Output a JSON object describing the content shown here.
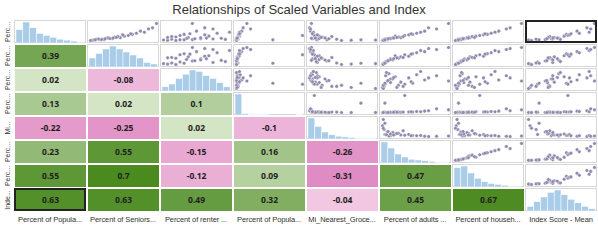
{
  "chart_data": {
    "type": "scatter_matrix",
    "title": "Relationships of Scaled Variables and Index",
    "variables": [
      "Percent of Popula...",
      "Percent of Seniors...",
      "Percent of renter ...",
      "Percent of Popula...",
      "Mi_Nearest_Groce...",
      "Percent of adults ...",
      "Percent of househ...",
      "Index Score - Mean"
    ],
    "row_labels": [
      "Perc...",
      "Perc...",
      "Perc...",
      "Perc...",
      "Mi...",
      "Perc...",
      "Perc...",
      "Inde..."
    ],
    "correlations": [
      [],
      [
        0.39
      ],
      [
        0.02,
        -0.08
      ],
      [
        0.13,
        0.02,
        0.1
      ],
      [
        -0.22,
        -0.25,
        0.02,
        -0.1
      ],
      [
        0.23,
        0.55,
        -0.15,
        0.16,
        -0.26
      ],
      [
        0.55,
        0.7,
        -0.12,
        0.09,
        -0.31,
        0.47
      ],
      [
        0.63,
        0.63,
        0.49,
        0.32,
        -0.04,
        0.45,
        0.67
      ]
    ],
    "bins": [
      0,
      0.1,
      0.2,
      0.3,
      0.4,
      0.5,
      0.6,
      0.7,
      0.8,
      0.9,
      1
    ],
    "histogram_counts": [
      [
        14,
        22,
        16,
        10,
        8,
        6,
        4,
        3,
        2,
        1
      ],
      [
        6,
        9,
        12,
        14,
        12,
        10,
        8,
        6,
        3,
        2
      ],
      [
        3,
        5,
        9,
        12,
        15,
        14,
        11,
        9,
        6,
        3
      ],
      [
        60,
        4,
        2,
        1,
        1,
        0,
        0,
        0,
        0,
        1
      ],
      [
        30,
        18,
        10,
        6,
        4,
        3,
        2,
        1,
        1,
        1
      ],
      [
        28,
        20,
        12,
        8,
        5,
        4,
        3,
        2,
        1,
        1
      ],
      [
        22,
        24,
        16,
        10,
        6,
        4,
        3,
        2,
        1,
        1
      ],
      [
        4,
        8,
        12,
        16,
        18,
        14,
        10,
        7,
        4,
        2
      ]
    ],
    "observations": [
      [
        0.05,
        0.2,
        0.3,
        0.02,
        0.1,
        0.05,
        0.08,
        0.2
      ],
      [
        0.1,
        0.35,
        0.55,
        0.01,
        0.05,
        0.12,
        0.15,
        0.38
      ],
      [
        0.08,
        0.15,
        0.2,
        0.03,
        0.3,
        0.04,
        0.06,
        0.18
      ],
      [
        0.15,
        0.45,
        0.4,
        0.02,
        0.08,
        0.25,
        0.22,
        0.42
      ],
      [
        0.22,
        0.5,
        0.65,
        0.05,
        0.12,
        0.18,
        0.3,
        0.55
      ],
      [
        0.03,
        0.1,
        0.15,
        0.01,
        0.45,
        0.02,
        0.04,
        0.1
      ],
      [
        0.3,
        0.6,
        0.35,
        0.04,
        0.06,
        0.4,
        0.45,
        0.58
      ],
      [
        0.12,
        0.28,
        0.8,
        0.02,
        0.04,
        0.1,
        0.12,
        0.48
      ],
      [
        0.45,
        0.7,
        0.5,
        0.08,
        0.03,
        0.55,
        0.6,
        0.72
      ],
      [
        0.06,
        0.25,
        0.45,
        0.01,
        0.2,
        0.08,
        0.1,
        0.3
      ],
      [
        0.18,
        0.38,
        0.25,
        0.03,
        0.15,
        0.22,
        0.2,
        0.35
      ],
      [
        0.6,
        0.85,
        0.6,
        0.1,
        0.02,
        0.6,
        0.75,
        0.85
      ],
      [
        0.09,
        0.18,
        0.7,
        0.02,
        0.1,
        0.06,
        0.09,
        0.4
      ],
      [
        0.25,
        0.55,
        0.3,
        0.9,
        0.07,
        0.3,
        0.35,
        0.6
      ],
      [
        0.04,
        0.12,
        0.1,
        0.01,
        0.7,
        0.03,
        0.05,
        0.08
      ],
      [
        0.35,
        0.65,
        0.75,
        0.06,
        0.05,
        0.45,
        0.5,
        0.75
      ],
      [
        0.14,
        0.3,
        0.55,
        0.02,
        0.18,
        0.15,
        0.18,
        0.4
      ],
      [
        0.8,
        0.9,
        0.45,
        0.15,
        0.04,
        0.85,
        0.9,
        0.95
      ],
      [
        0.07,
        0.22,
        0.85,
        0.01,
        0.09,
        0.07,
        0.11,
        0.5
      ],
      [
        0.2,
        0.42,
        0.2,
        0.03,
        0.25,
        0.28,
        0.25,
        0.36
      ],
      [
        0.11,
        0.32,
        0.38,
        0.02,
        0.12,
        0.12,
        0.14,
        0.33
      ],
      [
        0.4,
        0.75,
        0.9,
        0.05,
        0.06,
        0.5,
        0.55,
        0.88
      ],
      [
        0.02,
        0.08,
        0.25,
        0.01,
        0.35,
        0.03,
        0.03,
        0.12
      ],
      [
        0.28,
        0.48,
        0.6,
        0.04,
        0.1,
        0.35,
        0.4,
        0.62
      ],
      [
        0.16,
        0.4,
        0.15,
        0.02,
        0.14,
        0.2,
        0.28,
        0.34
      ],
      [
        0.55,
        0.8,
        0.7,
        0.2,
        0.03,
        0.7,
        0.7,
        0.9
      ],
      [
        0.1,
        0.26,
        0.48,
        0.01,
        0.22,
        0.09,
        0.13,
        0.32
      ],
      [
        0.13,
        0.36,
        0.62,
        0.02,
        0.08,
        0.16,
        0.2,
        0.46
      ],
      [
        0.05,
        0.14,
        0.35,
        0.5,
        0.55,
        0.05,
        0.07,
        0.22
      ],
      [
        0.33,
        0.58,
        0.42,
        0.05,
        0.05,
        0.38,
        0.42,
        0.64
      ]
    ],
    "tick_labels": false
  }
}
